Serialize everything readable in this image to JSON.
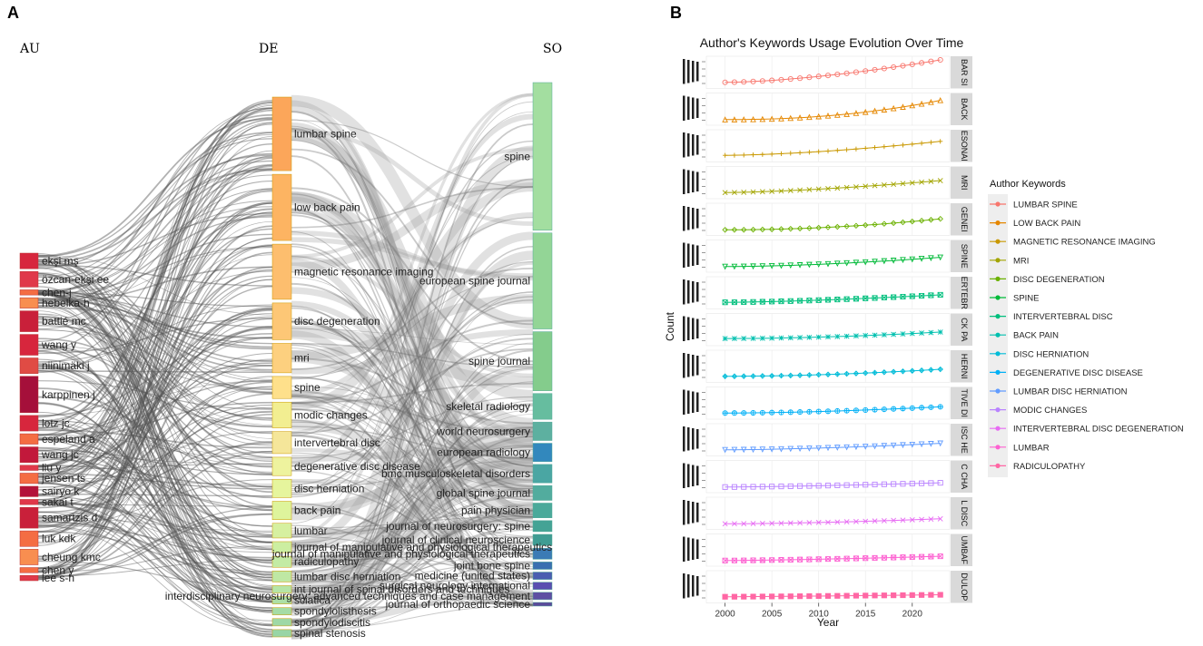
{
  "chart_data": [
    {
      "panel": "A",
      "type": "sankey",
      "columns": [
        "AU",
        "DE",
        "SO"
      ],
      "au_nodes": [
        "ekşi mş",
        "özcan-ekşi ee",
        "chen-j",
        "hebelka-h",
        "battié mc",
        "wang y",
        "niinimäki j",
        "karppinen j",
        "lotz jc",
        "espeland a",
        "wang jc",
        "liu y",
        "jensen ts",
        "sairyo k",
        "sakai t",
        "samartzis d",
        "luk kdk",
        "cheung kmc",
        "chen y",
        "lee s-h"
      ],
      "au_weights": [
        3,
        3,
        1,
        2,
        4,
        4,
        3,
        7,
        3,
        2,
        3,
        1,
        2,
        2,
        1,
        4,
        3,
        3,
        1,
        1
      ],
      "de_nodes": [
        "lumbar spine",
        "low back pain",
        "magnetic resonance imaging",
        "disc degeneration",
        "mri",
        "spine",
        "modic changes",
        "intervertebral disc",
        "degenerative disc disease",
        "disc herniation",
        "back pain",
        "lumbar",
        "journal of manipulative and physiological therapeutics",
        "radiculopathy",
        "lumbar disc herniation",
        "int journal of spinal disorders and techniques",
        "sciatica",
        "spondylolisthesis",
        "spondylodiscitis",
        "spinal stenosis"
      ],
      "de_weights": [
        20,
        18,
        15,
        10,
        8,
        6,
        7,
        6,
        5,
        5,
        5,
        4,
        3,
        3,
        3,
        2,
        2,
        2,
        2,
        2
      ],
      "so_nodes": [
        "spine",
        "european spine journal",
        "spine journal",
        "skeletal radiology",
        "world neurosurgery",
        "european radiology",
        "bmc musculoskeletal disorders",
        "global spine journal",
        "pain physician",
        "journal of neurosurgery: spine",
        "journal of clinical neuroscience",
        "journal of manipulative and physiological therapeutics",
        "joint bone spine",
        "medicine (united states)",
        "surgical neurology international",
        "interdisciplinary neurosurgery: advanced techniques and case management",
        "journal of orthopaedic science"
      ],
      "so_weights": [
        40,
        26,
        16,
        7,
        5,
        5,
        5,
        4,
        4,
        3,
        3,
        3,
        2,
        2,
        2,
        2,
        1
      ],
      "link_density": 260
    },
    {
      "panel": "B",
      "type": "line",
      "title": "Author's Keywords Usage Evolution Over Time",
      "xlabel": "Year",
      "ylabel": "Count",
      "x_ticks": [
        2000,
        2005,
        2010,
        2015,
        2020
      ],
      "x_range": [
        1998,
        2024
      ],
      "legend_title": "Author Keywords",
      "series": [
        {
          "name": "LUMBAR SPINE",
          "strip": "BAR SI",
          "color": "#F8766D",
          "marker": "circle",
          "start": 0.1,
          "end": 1.0,
          "curve": 1.6
        },
        {
          "name": "LOW BACK PAIN",
          "strip": "BACK",
          "color": "#E58700",
          "marker": "triangle",
          "start": 0.08,
          "end": 0.85,
          "curve": 2.2
        },
        {
          "name": "MAGNETIC RESONANCE IMAGING",
          "strip": "ESONAI",
          "color": "#C99800",
          "marker": "plus",
          "start": 0.12,
          "end": 0.68,
          "curve": 1.6
        },
        {
          "name": "MRI",
          "strip": "MRI",
          "color": "#A3A500",
          "marker": "cross",
          "start": 0.1,
          "end": 0.58,
          "curve": 1.5
        },
        {
          "name": "DISC DEGENERATION",
          "strip": "GENEI",
          "color": "#6BB100",
          "marker": "diamond",
          "start": 0.08,
          "end": 0.52,
          "curve": 2.0
        },
        {
          "name": "SPINE",
          "strip": "SPINE",
          "color": "#00BA38",
          "marker": "triangle-down",
          "start": 0.08,
          "end": 0.45,
          "curve": 1.7
        },
        {
          "name": "INTERVERTEBRAL DISC",
          "strip": "ERTEBR",
          "color": "#00BF7D",
          "marker": "square-x",
          "start": 0.12,
          "end": 0.42,
          "curve": 1.5
        },
        {
          "name": "BACK PAIN",
          "strip": "CK PA",
          "color": "#00C0AF",
          "marker": "asterisk",
          "start": 0.14,
          "end": 0.4,
          "curve": 1.8
        },
        {
          "name": "DISC HERNIATION",
          "strip": "HERNI",
          "color": "#00BCD8",
          "marker": "diamond-plus",
          "start": 0.1,
          "end": 0.38,
          "curve": 1.8
        },
        {
          "name": "DEGENERATIVE DISC DISEASE",
          "strip": "TIVE DI",
          "color": "#00B0F6",
          "marker": "circle-plus",
          "start": 0.1,
          "end": 0.35,
          "curve": 1.7
        },
        {
          "name": "LUMBAR DISC HERNIATION",
          "strip": "ISC HE",
          "color": "#619CFF",
          "marker": "triangle-down",
          "start": 0.1,
          "end": 0.36,
          "curve": 1.6
        },
        {
          "name": "MODIC CHANGES",
          "strip": "C CHA",
          "color": "#B983FF",
          "marker": "square",
          "start": 0.08,
          "end": 0.25,
          "curve": 1.4
        },
        {
          "name": "INTERVERTEBRAL DISC DEGENERATION",
          "strip": "L DISC",
          "color": "#E76BF3",
          "marker": "cross",
          "start": 0.08,
          "end": 0.28,
          "curve": 1.6
        },
        {
          "name": "LUMBAR",
          "strip": "UMBAF",
          "color": "#FD61D1",
          "marker": "square-x",
          "start": 0.08,
          "end": 0.25,
          "curve": 1.4
        },
        {
          "name": "RADICULOPATHY",
          "strip": "DULOP",
          "color": "#FF67A4",
          "marker": "square-filled",
          "start": 0.1,
          "end": 0.18,
          "curve": 1.2
        }
      ]
    }
  ],
  "labels": {
    "panel_a": "A",
    "panel_b": "B"
  }
}
